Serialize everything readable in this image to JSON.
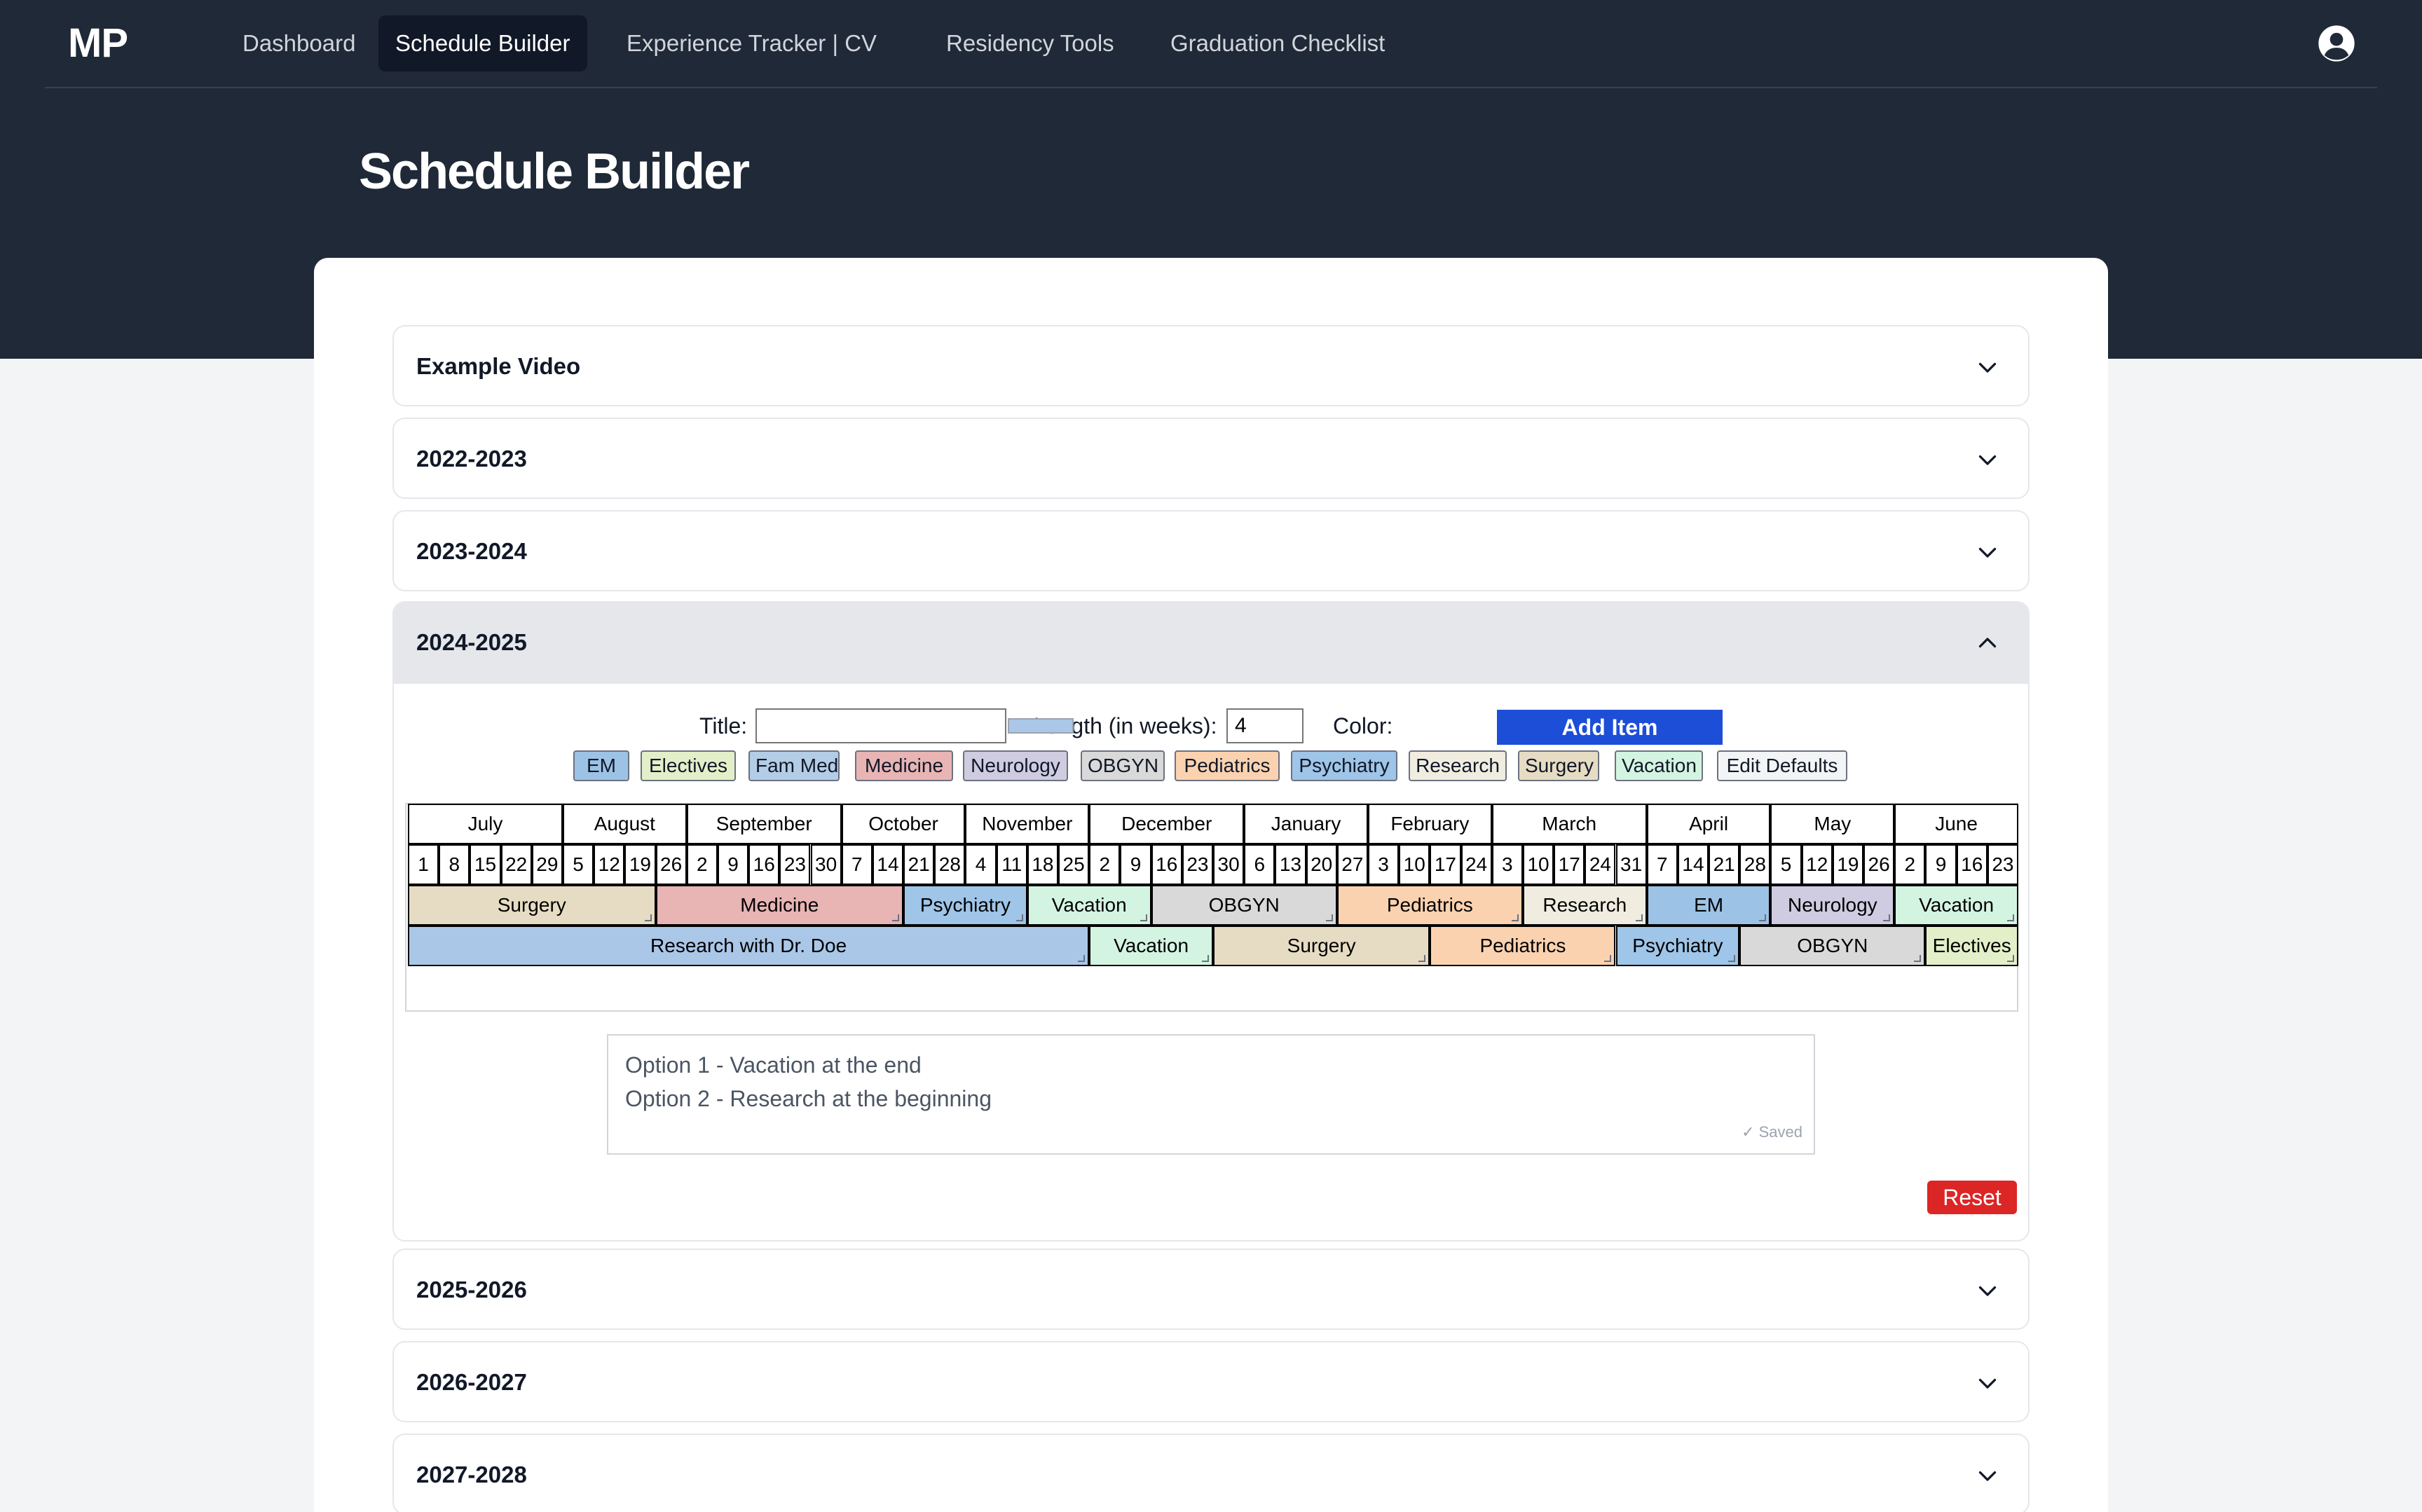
{
  "nav": {
    "logo": "MP",
    "items": [
      {
        "label": "Dashboard"
      },
      {
        "label": "Schedule Builder"
      },
      {
        "label": "Experience Tracker | CV"
      },
      {
        "label": "Residency Tools"
      },
      {
        "label": "Graduation Checklist"
      }
    ],
    "active": "Schedule Builder",
    "user_icon": "user-circle-icon"
  },
  "page": {
    "title": "Schedule Builder"
  },
  "accordions": {
    "example_video": "Example Video",
    "y2022": "2022-2023",
    "y2023": "2023-2024",
    "y2024": "2024-2025",
    "y2025": "2025-2026",
    "y2026": "2026-2027",
    "y2027": "2027-2028"
  },
  "form": {
    "title_label": "Title:",
    "title_value": "",
    "length_label": "Length (in weeks):",
    "length_value": "4",
    "color_label": "Color:",
    "color_value": "#aac7e8",
    "add_button": "Add Item"
  },
  "presets": [
    {
      "label": "EM",
      "color": "#9cc3e6"
    },
    {
      "label": "Electives",
      "color": "#e3efc8"
    },
    {
      "label": "Fam Med",
      "color": "#b4cde6"
    },
    {
      "label": "Medicine",
      "color": "#e8b4b4"
    },
    {
      "label": "Neurology",
      "color": "#cfcbe0"
    },
    {
      "label": "OBGYN",
      "color": "#d9d9d9"
    },
    {
      "label": "Pediatrics",
      "color": "#fbd2b0"
    },
    {
      "label": "Psychiatry",
      "color": "#9fc5e8"
    },
    {
      "label": "Research",
      "color": "#f0ede0"
    },
    {
      "label": "Surgery",
      "color": "#e6dcc3"
    },
    {
      "label": "Vacation",
      "color": "#d4f4e2"
    },
    {
      "label": "Edit Defaults",
      "color": "#f3f4f6"
    }
  ],
  "schedule": {
    "months": [
      {
        "name": "July",
        "weeks": [
          "1",
          "8",
          "15",
          "22",
          "29"
        ]
      },
      {
        "name": "August",
        "weeks": [
          "5",
          "12",
          "19",
          "26"
        ]
      },
      {
        "name": "September",
        "weeks": [
          "2",
          "9",
          "16",
          "23",
          "30"
        ]
      },
      {
        "name": "October",
        "weeks": [
          "7",
          "14",
          "21",
          "28"
        ]
      },
      {
        "name": "November",
        "weeks": [
          "4",
          "11",
          "18",
          "25"
        ]
      },
      {
        "name": "December",
        "weeks": [
          "2",
          "9",
          "16",
          "23",
          "30"
        ]
      },
      {
        "name": "January",
        "weeks": [
          "6",
          "13",
          "20",
          "27"
        ]
      },
      {
        "name": "February",
        "weeks": [
          "3",
          "10",
          "17",
          "24"
        ]
      },
      {
        "name": "March",
        "weeks": [
          "3",
          "10",
          "17",
          "24",
          "31"
        ]
      },
      {
        "name": "April",
        "weeks": [
          "7",
          "14",
          "21",
          "28"
        ]
      },
      {
        "name": "May",
        "weeks": [
          "5",
          "12",
          "19",
          "26"
        ]
      },
      {
        "name": "June",
        "weeks": [
          "2",
          "9",
          "16",
          "23"
        ]
      }
    ],
    "rows": [
      [
        {
          "title": "Surgery",
          "weeks": 8,
          "color": "#e6dcc3"
        },
        {
          "title": "Medicine",
          "weeks": 8,
          "color": "#e8b4b4"
        },
        {
          "title": "Psychiatry",
          "weeks": 4,
          "color": "#9fc5e8"
        },
        {
          "title": "Vacation",
          "weeks": 4,
          "color": "#d4f4e2"
        },
        {
          "title": "OBGYN",
          "weeks": 6,
          "color": "#d9d9d9"
        },
        {
          "title": "Pediatrics",
          "weeks": 6,
          "color": "#fbd2b0"
        },
        {
          "title": "Research",
          "weeks": 4,
          "color": "#f0ede0"
        },
        {
          "title": "EM",
          "weeks": 4,
          "color": "#9cc3e6"
        },
        {
          "title": "Neurology",
          "weeks": 4,
          "color": "#cfcbe0"
        },
        {
          "title": "Vacation",
          "weeks": 4,
          "color": "#d4f4e2"
        }
      ],
      [
        {
          "title": "Research with Dr. Doe",
          "weeks": 22,
          "color": "#aac7e8"
        },
        {
          "title": "Vacation",
          "weeks": 4,
          "color": "#d4f4e2"
        },
        {
          "title": "Surgery",
          "weeks": 7,
          "color": "#e6dcc3"
        },
        {
          "title": "Pediatrics",
          "weeks": 6,
          "color": "#fbd2b0"
        },
        {
          "title": "Psychiatry",
          "weeks": 4,
          "color": "#9fc5e8"
        },
        {
          "title": "OBGYN",
          "weeks": 6,
          "color": "#d9d9d9"
        },
        {
          "title": "Electives",
          "weeks": 3,
          "color": "#e3efc8"
        }
      ]
    ]
  },
  "notes": {
    "line1": "Option 1 - Vacation at the end",
    "line2": "Option 2 - Research at the beginning",
    "saved": "✓ Saved"
  },
  "reset_button": "Reset"
}
